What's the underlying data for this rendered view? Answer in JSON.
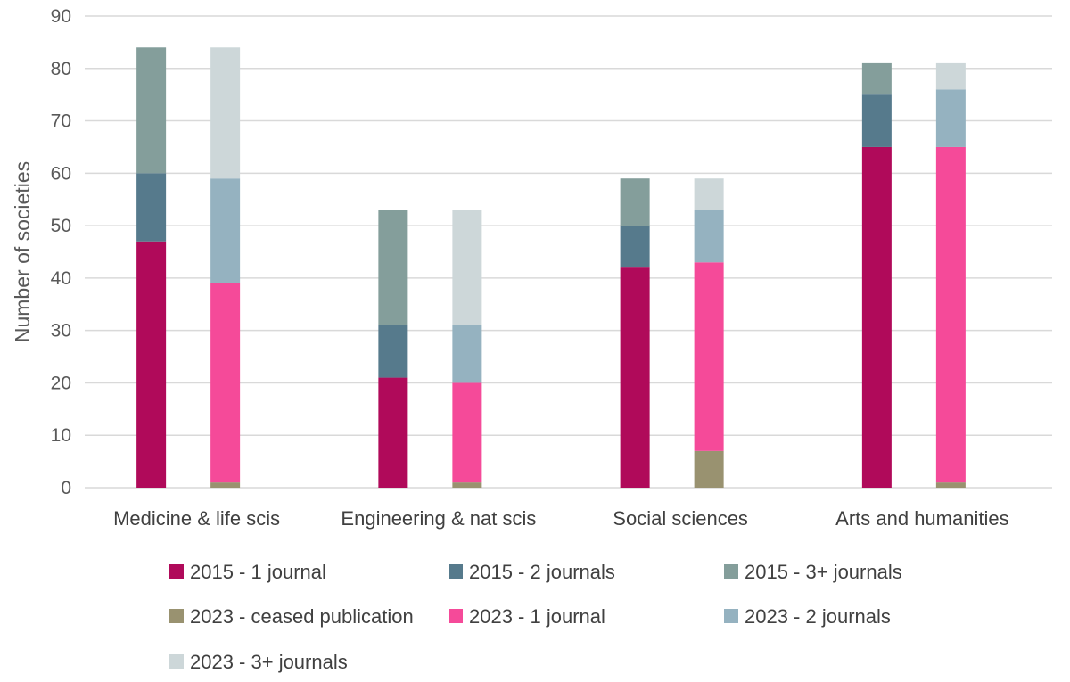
{
  "chart_data": {
    "type": "bar",
    "stacked": true,
    "title": "",
    "xlabel": "",
    "ylabel": "Number of societies",
    "ylim": [
      0,
      90
    ],
    "yticks": [
      0,
      10,
      20,
      30,
      40,
      50,
      60,
      70,
      80,
      90
    ],
    "grid": true,
    "legend_position": "bottom",
    "categories": [
      "Medicine & life scis",
      "Engineering & nat scis",
      "Social sciences",
      "Arts and humanities"
    ],
    "groups": [
      {
        "year": "2015",
        "series": [
          {
            "name": "2015 - 1 journal",
            "color": "#B00A5A",
            "values": [
              47,
              21,
              42,
              65
            ]
          },
          {
            "name": "2015 - 2 journals",
            "color": "#567A8C",
            "values": [
              13,
              10,
              8,
              10
            ]
          },
          {
            "name": "2015 - 3+ journals",
            "color": "#849E9B",
            "values": [
              24,
              22,
              9,
              6
            ]
          }
        ]
      },
      {
        "year": "2023",
        "series": [
          {
            "name": "2023 - ceased publication",
            "color": "#999270",
            "values": [
              1,
              1,
              7,
              1
            ]
          },
          {
            "name": "2023 - 1 journal",
            "color": "#F54A99",
            "values": [
              38,
              19,
              36,
              64
            ]
          },
          {
            "name": "2023 - 2 journals",
            "color": "#95B2C0",
            "values": [
              20,
              11,
              10,
              11
            ]
          },
          {
            "name": "2023 - 3+ journals",
            "color": "#CDD7D9",
            "values": [
              25,
              22,
              6,
              5
            ]
          }
        ]
      }
    ],
    "legend": [
      {
        "name": "2015 - 1 journal",
        "color": "#B00A5A"
      },
      {
        "name": "2015 - 2 journals",
        "color": "#567A8C"
      },
      {
        "name": "2015 - 3+ journals",
        "color": "#849E9B"
      },
      {
        "name": "2023 - ceased publication",
        "color": "#999270"
      },
      {
        "name": "2023 - 1 journal",
        "color": "#F54A99"
      },
      {
        "name": "2023 - 2 journals",
        "color": "#95B2C0"
      },
      {
        "name": "2023 - 3+ journals",
        "color": "#CDD7D9"
      }
    ]
  }
}
